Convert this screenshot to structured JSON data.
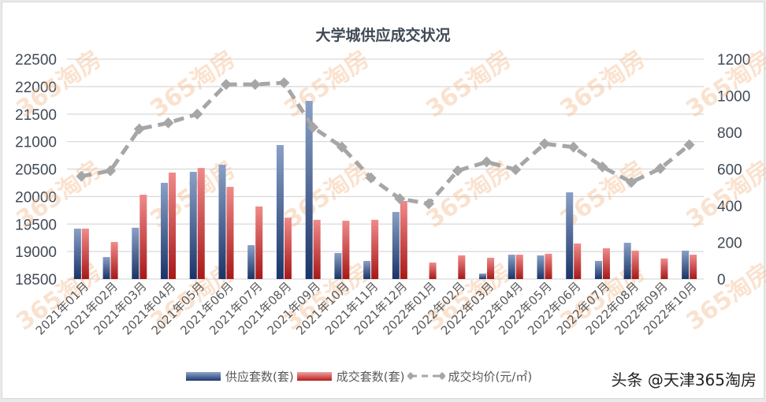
{
  "chart_data": {
    "type": "bar+line",
    "title": "大学城供应成交状况",
    "categories": [
      "2021年01月",
      "2021年02月",
      "2021年03月",
      "2021年04月",
      "2021年05月",
      "2021年06月",
      "2021年07月",
      "2021年08月",
      "2021年09月",
      "2021年10月",
      "2021年11月",
      "2021年12月",
      "2022年01月",
      "2022年02月",
      "2022年03月",
      "2022年04月",
      "2022年05月",
      "2022年06月",
      "2022年07月",
      "2022年08月",
      "2022年09月",
      "2022年10月"
    ],
    "series": [
      {
        "name": "供应套数(套)",
        "type": "bar",
        "axis": "right",
        "color": "#2e4a80",
        "values": [
          275,
          120,
          280,
          525,
          585,
          624,
          185,
          731,
          972,
          142,
          99,
          366,
          0,
          0,
          30,
          133,
          129,
          473,
          99,
          198,
          0,
          155
        ]
      },
      {
        "name": "成交套数(套)",
        "type": "bar",
        "axis": "right",
        "color": "#c42a2a",
        "values": [
          275,
          202,
          460,
          581,
          606,
          503,
          396,
          335,
          323,
          318,
          323,
          426,
          90,
          129,
          116,
          133,
          138,
          194,
          168,
          155,
          112,
          133
        ]
      },
      {
        "name": "成交均价(元/㎡)",
        "type": "line",
        "axis": "left",
        "style": "dashed",
        "marker": "diamond",
        "color": "#a6a6a6",
        "values": [
          20370,
          20470,
          21230,
          21340,
          21500,
          22040,
          22040,
          22070,
          21260,
          20900,
          20340,
          19960,
          19870,
          20470,
          20630,
          20490,
          20960,
          20900,
          20540,
          20260,
          20510,
          20940
        ]
      }
    ],
    "left_axis": {
      "min": 18500,
      "max": 22500,
      "step": 500,
      "ticks": [
        "22500",
        "22000",
        "21500",
        "21000",
        "20500",
        "20000",
        "19500",
        "19000",
        "18500"
      ]
    },
    "right_axis": {
      "min": 0,
      "max": 1200,
      "step": 200,
      "ticks": [
        "1200",
        "1000",
        "800",
        "600",
        "400",
        "200",
        "0"
      ]
    },
    "xlabel": "",
    "ylabel": "",
    "grid": true,
    "legend_position": "bottom"
  },
  "legend": {
    "supply": "供应套数(套)",
    "deal": "成交套数(套)",
    "price": "成交均价(元/㎡)"
  },
  "watermark": "365淘房",
  "attribution": "头条 @天津365淘房"
}
